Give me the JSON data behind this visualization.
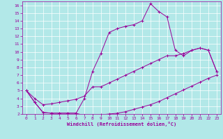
{
  "xlabel": "Windchill (Refroidissement éolien,°C)",
  "background_color": "#b2e8e8",
  "line_color": "#990099",
  "grid_color": "#ffffff",
  "xlim": [
    -0.5,
    23.5
  ],
  "ylim": [
    2,
    16.5
  ],
  "xticks": [
    0,
    1,
    2,
    3,
    4,
    5,
    6,
    7,
    8,
    9,
    10,
    11,
    12,
    13,
    14,
    15,
    16,
    17,
    18,
    19,
    20,
    21,
    22,
    23
  ],
  "yticks": [
    2,
    3,
    4,
    5,
    6,
    7,
    8,
    9,
    10,
    11,
    12,
    13,
    14,
    15,
    16
  ],
  "series": [
    {
      "x": [
        0,
        1,
        2,
        3,
        4,
        5,
        6,
        7,
        8,
        9,
        10,
        11,
        12,
        13,
        14,
        15,
        16,
        17,
        18,
        19,
        20,
        21,
        22,
        23
      ],
      "y": [
        5.0,
        3.5,
        2.2,
        2.1,
        2.1,
        2.1,
        2.1,
        1.8,
        1.8,
        1.9,
        2.0,
        2.1,
        2.3,
        2.6,
        2.9,
        3.2,
        3.6,
        4.1,
        4.6,
        5.1,
        5.6,
        6.1,
        6.6,
        7.0
      ]
    },
    {
      "x": [
        0,
        1,
        2,
        3,
        4,
        5,
        6,
        7,
        8,
        9,
        10,
        11,
        12,
        13,
        14,
        15,
        16,
        17,
        18,
        19,
        20,
        21,
        22,
        23
      ],
      "y": [
        5.0,
        4.0,
        3.2,
        3.3,
        3.5,
        3.7,
        3.9,
        4.3,
        5.5,
        5.5,
        6.0,
        6.5,
        7.0,
        7.5,
        8.0,
        8.5,
        9.0,
        9.5,
        9.5,
        9.8,
        10.2,
        10.5,
        10.2,
        7.5
      ]
    },
    {
      "x": [
        0,
        1,
        2,
        3,
        4,
        5,
        6,
        7,
        8,
        9,
        10,
        11,
        12,
        13,
        14,
        15,
        16,
        17,
        18,
        19,
        20,
        21,
        22,
        23
      ],
      "y": [
        5.0,
        3.5,
        2.2,
        2.1,
        2.1,
        2.1,
        2.1,
        4.0,
        7.5,
        9.8,
        12.5,
        13.0,
        13.3,
        13.5,
        14.0,
        16.2,
        15.2,
        14.5,
        10.2,
        9.5,
        10.2,
        10.5,
        10.2,
        7.5
      ]
    }
  ]
}
